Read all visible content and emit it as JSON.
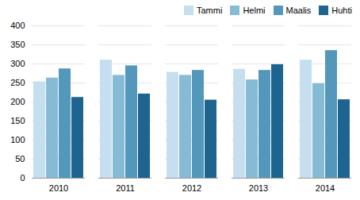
{
  "chart_data": {
    "type": "bar",
    "categories": [
      "2010",
      "2011",
      "2012",
      "2013",
      "2014"
    ],
    "series": [
      {
        "name": "Tammi",
        "color": "#c5dff0",
        "values": [
          253,
          310,
          278,
          286,
          310
        ]
      },
      {
        "name": "Helmi",
        "color": "#85bbd4",
        "values": [
          263,
          270,
          270,
          258,
          248
        ]
      },
      {
        "name": "Maalis",
        "color": "#5398bb",
        "values": [
          287,
          295,
          283,
          283,
          335
        ]
      },
      {
        "name": "Huhti",
        "color": "#1e6490",
        "values": [
          212,
          221,
          205,
          298,
          206
        ]
      }
    ],
    "ylim": [
      0,
      400
    ],
    "yticks": [
      0,
      50,
      100,
      150,
      200,
      250,
      300,
      350,
      400
    ],
    "grid": true,
    "legend": "upper right"
  }
}
